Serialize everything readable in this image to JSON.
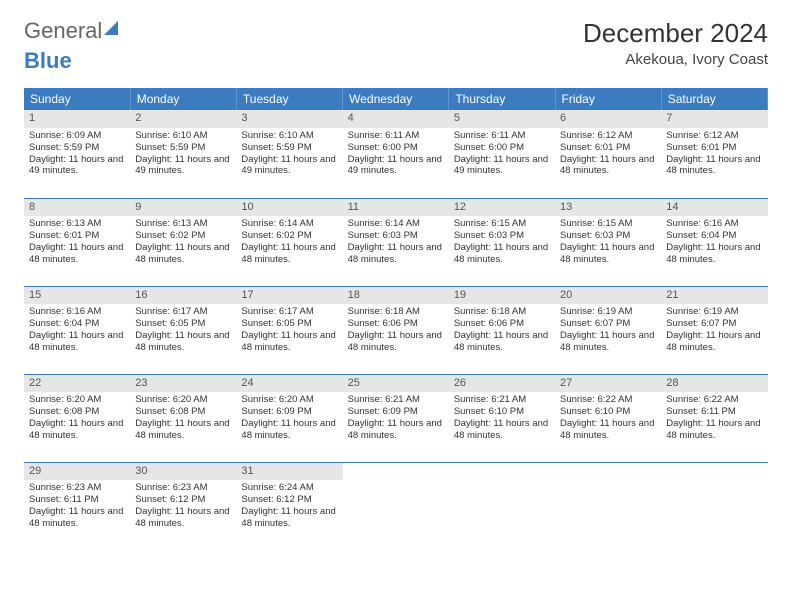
{
  "brand": {
    "general": "General",
    "blue": "Blue"
  },
  "title": "December 2024",
  "location": "Akekoua, Ivory Coast",
  "colors": {
    "header_bg": "#3b7bbf",
    "header_text": "#ffffff",
    "daynum_bg": "#e6e6e6",
    "rule": "#3b7bbf",
    "text": "#333333",
    "background": "#ffffff"
  },
  "typography": {
    "title_fontsize": 26,
    "location_fontsize": 15,
    "th_fontsize": 12,
    "cell_fontsize": 9.5
  },
  "layout": {
    "columns": 7,
    "rows": 5,
    "start_offset": 0
  },
  "weekdays": [
    "Sunday",
    "Monday",
    "Tuesday",
    "Wednesday",
    "Thursday",
    "Friday",
    "Saturday"
  ],
  "days": [
    {
      "n": 1,
      "sunrise": "6:09 AM",
      "sunset": "5:59 PM",
      "daylight": "11 hours and 49 minutes."
    },
    {
      "n": 2,
      "sunrise": "6:10 AM",
      "sunset": "5:59 PM",
      "daylight": "11 hours and 49 minutes."
    },
    {
      "n": 3,
      "sunrise": "6:10 AM",
      "sunset": "5:59 PM",
      "daylight": "11 hours and 49 minutes."
    },
    {
      "n": 4,
      "sunrise": "6:11 AM",
      "sunset": "6:00 PM",
      "daylight": "11 hours and 49 minutes."
    },
    {
      "n": 5,
      "sunrise": "6:11 AM",
      "sunset": "6:00 PM",
      "daylight": "11 hours and 49 minutes."
    },
    {
      "n": 6,
      "sunrise": "6:12 AM",
      "sunset": "6:01 PM",
      "daylight": "11 hours and 48 minutes."
    },
    {
      "n": 7,
      "sunrise": "6:12 AM",
      "sunset": "6:01 PM",
      "daylight": "11 hours and 48 minutes."
    },
    {
      "n": 8,
      "sunrise": "6:13 AM",
      "sunset": "6:01 PM",
      "daylight": "11 hours and 48 minutes."
    },
    {
      "n": 9,
      "sunrise": "6:13 AM",
      "sunset": "6:02 PM",
      "daylight": "11 hours and 48 minutes."
    },
    {
      "n": 10,
      "sunrise": "6:14 AM",
      "sunset": "6:02 PM",
      "daylight": "11 hours and 48 minutes."
    },
    {
      "n": 11,
      "sunrise": "6:14 AM",
      "sunset": "6:03 PM",
      "daylight": "11 hours and 48 minutes."
    },
    {
      "n": 12,
      "sunrise": "6:15 AM",
      "sunset": "6:03 PM",
      "daylight": "11 hours and 48 minutes."
    },
    {
      "n": 13,
      "sunrise": "6:15 AM",
      "sunset": "6:03 PM",
      "daylight": "11 hours and 48 minutes."
    },
    {
      "n": 14,
      "sunrise": "6:16 AM",
      "sunset": "6:04 PM",
      "daylight": "11 hours and 48 minutes."
    },
    {
      "n": 15,
      "sunrise": "6:16 AM",
      "sunset": "6:04 PM",
      "daylight": "11 hours and 48 minutes."
    },
    {
      "n": 16,
      "sunrise": "6:17 AM",
      "sunset": "6:05 PM",
      "daylight": "11 hours and 48 minutes."
    },
    {
      "n": 17,
      "sunrise": "6:17 AM",
      "sunset": "6:05 PM",
      "daylight": "11 hours and 48 minutes."
    },
    {
      "n": 18,
      "sunrise": "6:18 AM",
      "sunset": "6:06 PM",
      "daylight": "11 hours and 48 minutes."
    },
    {
      "n": 19,
      "sunrise": "6:18 AM",
      "sunset": "6:06 PM",
      "daylight": "11 hours and 48 minutes."
    },
    {
      "n": 20,
      "sunrise": "6:19 AM",
      "sunset": "6:07 PM",
      "daylight": "11 hours and 48 minutes."
    },
    {
      "n": 21,
      "sunrise": "6:19 AM",
      "sunset": "6:07 PM",
      "daylight": "11 hours and 48 minutes."
    },
    {
      "n": 22,
      "sunrise": "6:20 AM",
      "sunset": "6:08 PM",
      "daylight": "11 hours and 48 minutes."
    },
    {
      "n": 23,
      "sunrise": "6:20 AM",
      "sunset": "6:08 PM",
      "daylight": "11 hours and 48 minutes."
    },
    {
      "n": 24,
      "sunrise": "6:20 AM",
      "sunset": "6:09 PM",
      "daylight": "11 hours and 48 minutes."
    },
    {
      "n": 25,
      "sunrise": "6:21 AM",
      "sunset": "6:09 PM",
      "daylight": "11 hours and 48 minutes."
    },
    {
      "n": 26,
      "sunrise": "6:21 AM",
      "sunset": "6:10 PM",
      "daylight": "11 hours and 48 minutes."
    },
    {
      "n": 27,
      "sunrise": "6:22 AM",
      "sunset": "6:10 PM",
      "daylight": "11 hours and 48 minutes."
    },
    {
      "n": 28,
      "sunrise": "6:22 AM",
      "sunset": "6:11 PM",
      "daylight": "11 hours and 48 minutes."
    },
    {
      "n": 29,
      "sunrise": "6:23 AM",
      "sunset": "6:11 PM",
      "daylight": "11 hours and 48 minutes."
    },
    {
      "n": 30,
      "sunrise": "6:23 AM",
      "sunset": "6:12 PM",
      "daylight": "11 hours and 48 minutes."
    },
    {
      "n": 31,
      "sunrise": "6:24 AM",
      "sunset": "6:12 PM",
      "daylight": "11 hours and 48 minutes."
    }
  ],
  "labels": {
    "sunrise": "Sunrise:",
    "sunset": "Sunset:",
    "daylight": "Daylight:"
  }
}
